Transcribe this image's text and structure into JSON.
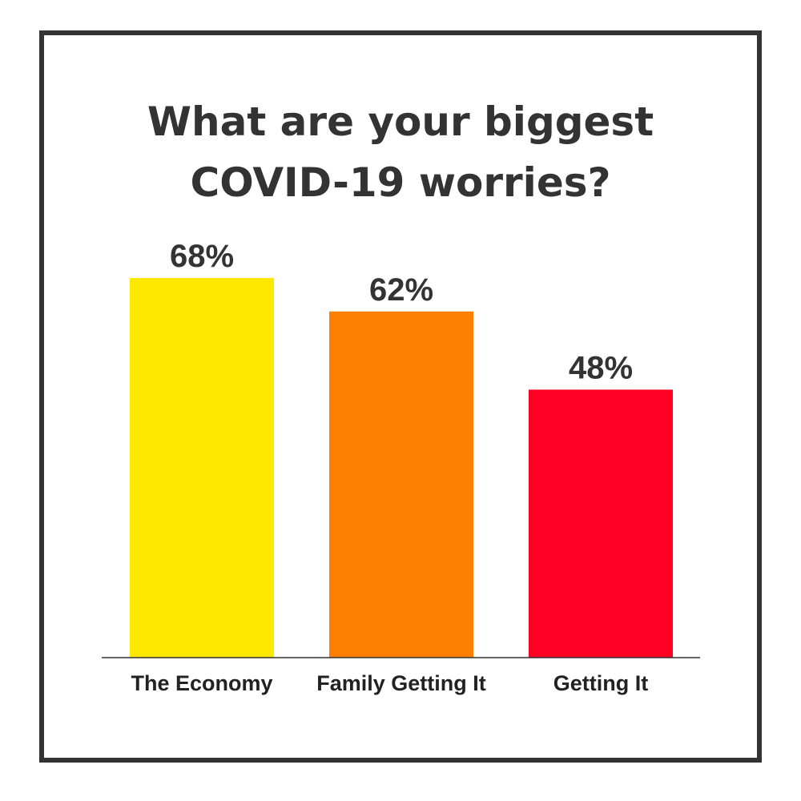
{
  "chart_data": {
    "type": "bar",
    "title_lines": [
      "What are your biggest",
      "COVID-19 worries?"
    ],
    "categories": [
      "The Economy",
      "Family Getting It",
      "Getting It"
    ],
    "values": [
      68,
      62,
      48
    ],
    "value_labels": [
      "68%",
      "62%",
      "48%"
    ],
    "colors": [
      "#FFE800",
      "#FF8000",
      "#FF0025"
    ],
    "ylim": [
      0,
      100
    ],
    "grid": false,
    "legend": "none"
  }
}
